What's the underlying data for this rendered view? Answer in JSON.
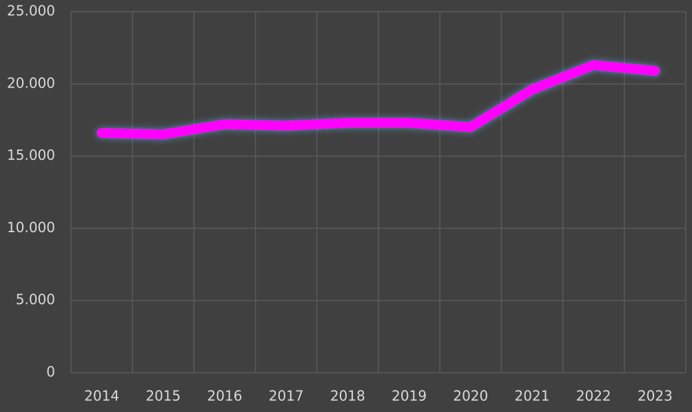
{
  "chart_data": {
    "type": "line",
    "categories": [
      "2014",
      "2015",
      "2016",
      "2017",
      "2018",
      "2019",
      "2020",
      "2021",
      "2022",
      "2023"
    ],
    "values": [
      16600,
      16500,
      17200,
      17100,
      17300,
      17300,
      17000,
      19600,
      21300,
      20900
    ],
    "color": "#ff00ff",
    "ylim": [
      0,
      25000
    ],
    "yticks": [
      0,
      {
        "value": 5000,
        "label": "5.000"
      },
      {
        "value": 10000,
        "label": "10.000"
      },
      {
        "value": 15000,
        "label": "15.000"
      },
      {
        "value": 20000,
        "label": "20.000"
      },
      {
        "value": 25000,
        "label": "25.000"
      }
    ],
    "grid": true
  }
}
